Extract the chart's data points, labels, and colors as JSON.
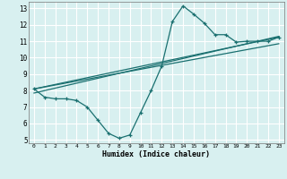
{
  "xlabel": "Humidex (Indice chaleur)",
  "bg_color": "#d8f0f0",
  "grid_color": "#ffffff",
  "line_color": "#1a7070",
  "xlim": [
    -0.5,
    23.5
  ],
  "ylim": [
    4.8,
    13.4
  ],
  "xticks": [
    0,
    1,
    2,
    3,
    4,
    5,
    6,
    7,
    8,
    9,
    10,
    11,
    12,
    13,
    14,
    15,
    16,
    17,
    18,
    19,
    20,
    21,
    22,
    23
  ],
  "yticks": [
    5,
    6,
    7,
    8,
    9,
    10,
    11,
    12,
    13
  ],
  "line1_x": [
    0,
    1,
    2,
    3,
    4,
    5,
    6,
    7,
    8,
    9,
    10,
    11,
    12,
    13,
    14,
    15,
    16,
    17,
    18,
    19,
    20,
    21,
    22,
    23
  ],
  "line1_y": [
    8.1,
    7.6,
    7.5,
    7.5,
    7.4,
    7.0,
    6.2,
    5.4,
    5.1,
    5.3,
    6.65,
    8.0,
    9.5,
    12.2,
    13.15,
    12.65,
    12.1,
    11.4,
    11.4,
    10.95,
    11.0,
    11.0,
    11.0,
    11.25
  ],
  "line2_x": [
    0,
    23
  ],
  "line2_y": [
    8.1,
    11.25
  ],
  "line3_x": [
    0,
    23
  ],
  "line3_y": [
    7.85,
    11.3
  ],
  "line4_x": [
    0,
    23
  ],
  "line4_y": [
    8.1,
    10.85
  ]
}
